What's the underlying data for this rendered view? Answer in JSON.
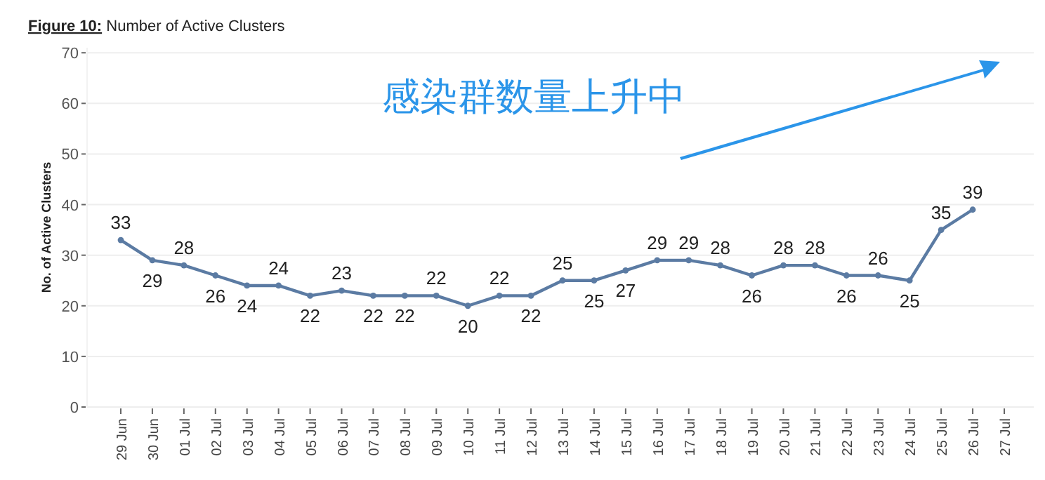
{
  "chart_data": {
    "type": "line",
    "title": "Figure 10: Number of Active Clusters",
    "ylabel": "No. of Active Clusters",
    "categories": [
      "29 Jun",
      "30 Jun",
      "01 Jul",
      "02 Jul",
      "03 Jul",
      "04 Jul",
      "05 Jul",
      "06 Jul",
      "07 Jul",
      "08 Jul",
      "09 Jul",
      "10 Jul",
      "11 Jul",
      "12 Jul",
      "13 Jul",
      "14 Jul",
      "15 Jul",
      "16 Jul",
      "17 Jul",
      "18 Jul",
      "19 Jul",
      "20 Jul",
      "21 Jul",
      "22 Jul",
      "23 Jul",
      "24 Jul",
      "25 Jul",
      "26 Jul",
      "27 Jul"
    ],
    "series": [
      {
        "color": "#5b7ba3",
        "values": [
          33,
          29,
          28,
          26,
          24,
          24,
          22,
          23,
          22,
          22,
          22,
          20,
          22,
          22,
          25,
          25,
          27,
          29,
          29,
          28,
          26,
          28,
          28,
          26,
          26,
          25,
          35,
          39,
          null
        ]
      }
    ],
    "ylim": [
      0,
      71
    ],
    "yticks": [
      0,
      10,
      20,
      30,
      40,
      50,
      60,
      70
    ],
    "grid": "y",
    "marker": "circle",
    "line_style": "solid",
    "data_labels": true,
    "annotations": [
      "感染群数量上升中"
    ]
  }
}
